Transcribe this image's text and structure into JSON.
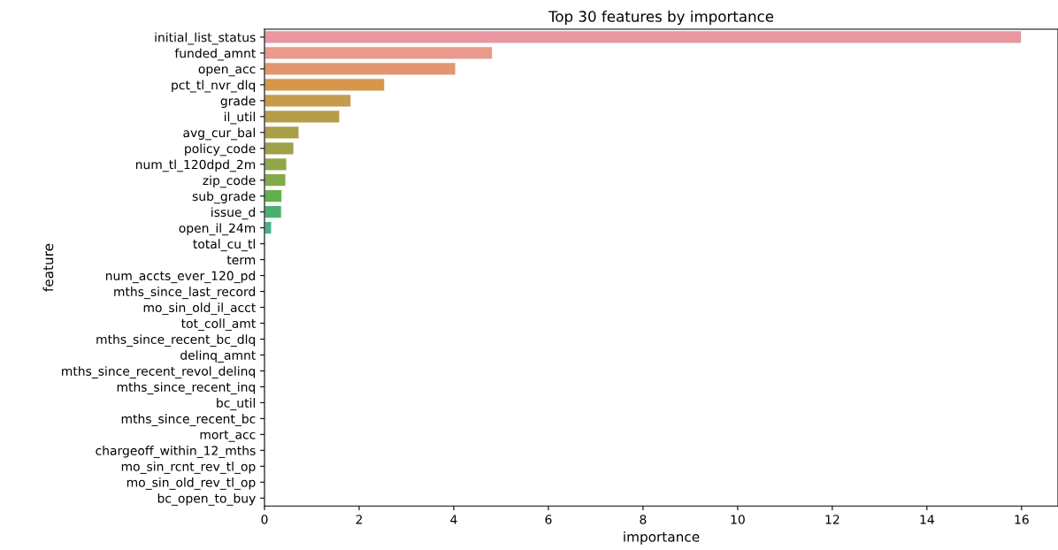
{
  "chart_data": {
    "type": "bar",
    "orientation": "horizontal",
    "title": "Top 30 features by importance",
    "xlabel": "importance",
    "ylabel": "feature",
    "categories": [
      "initial_list_status",
      "funded_amnt",
      "open_acc",
      "pct_tl_nvr_dlq",
      "grade",
      "il_util",
      "avg_cur_bal",
      "policy_code",
      "num_tl_120dpd_2m",
      "zip_code",
      "sub_grade",
      "issue_d",
      "open_il_24m",
      "total_cu_tl",
      "term",
      "num_accts_ever_120_pd",
      "mths_since_last_record",
      "mo_sin_old_il_acct",
      "tot_coll_amt",
      "mths_since_recent_bc_dlq",
      "delinq_amnt",
      "mths_since_recent_revol_delinq",
      "mths_since_recent_inq",
      "bc_util",
      "mths_since_recent_bc",
      "mort_acc",
      "chargeoff_within_12_mths",
      "mo_sin_rcnt_rev_tl_op",
      "mo_sin_old_rev_tl_op",
      "bc_open_to_buy"
    ],
    "values": [
      16.0,
      4.82,
      4.04,
      2.54,
      1.83,
      1.59,
      0.73,
      0.62,
      0.47,
      0.45,
      0.37,
      0.36,
      0.15,
      0,
      0,
      0,
      0,
      0,
      0,
      0,
      0,
      0,
      0,
      0,
      0,
      0,
      0,
      0,
      0,
      0
    ],
    "colors": [
      "#e8969f",
      "#e89a8c",
      "#e39570",
      "#d6964c",
      "#c49c4c",
      "#b69d4a",
      "#a89f48",
      "#9ea04a",
      "#91a64b",
      "#82aa4b",
      "#62b04c",
      "#4bb06c",
      "#4bb08b",
      "#4aaf9a",
      "#4baea6",
      "#4cadb1",
      "#4eabbc",
      "#52a9c8",
      "#58a5d5",
      "#6aa0e0",
      "#8a99e4",
      "#a291e4",
      "#b48be2",
      "#c584df",
      "#d27fd7",
      "#dc7dcb",
      "#e27fbd",
      "#e683b0",
      "#e888a5",
      "#e98c9b"
    ],
    "xlim": [
      0,
      16.77
    ],
    "xticks": [
      0,
      2,
      4,
      6,
      8,
      10,
      12,
      14,
      16
    ],
    "grid": false
  }
}
